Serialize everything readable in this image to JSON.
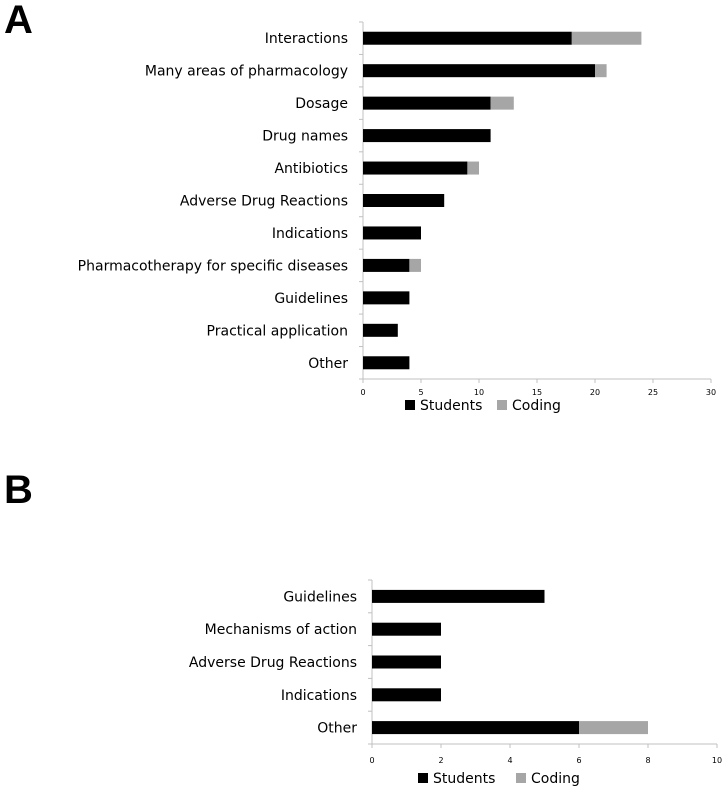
{
  "panel_a_letter": "A",
  "panel_b_letter": "B",
  "colors": {
    "students": "#000000",
    "coding": "#a6a6a6",
    "axis": "#c0c0c0"
  },
  "chart_data": [
    {
      "type": "bar",
      "orientation": "horizontal",
      "stacked": true,
      "categories": [
        "Interactions",
        "Many areas of pharmacology",
        "Dosage",
        "Drug names",
        "Antibiotics",
        "Adverse Drug Reactions",
        "Indications",
        "Pharmacotherapy for specific diseases",
        "Guidelines",
        "Practical application",
        "Other"
      ],
      "series": [
        {
          "name": "Students",
          "values": [
            18,
            20,
            11,
            11,
            9,
            7,
            5,
            4,
            4,
            3,
            4
          ]
        },
        {
          "name": "Coding",
          "values": [
            6,
            1,
            2,
            0,
            1,
            0,
            0,
            1,
            0,
            0,
            0
          ]
        }
      ],
      "xlim": [
        0,
        30
      ],
      "xticks": [
        0,
        5,
        10,
        15,
        20,
        25,
        30
      ],
      "grid": false,
      "legend": "bottom"
    },
    {
      "type": "bar",
      "orientation": "horizontal",
      "stacked": true,
      "categories": [
        "Guidelines",
        "Mechanisms of action",
        "Adverse Drug Reactions",
        "Indications",
        "Other"
      ],
      "series": [
        {
          "name": "Students",
          "values": [
            5,
            2,
            2,
            2,
            6
          ]
        },
        {
          "name": "Coding",
          "values": [
            0,
            0,
            0,
            0,
            2
          ]
        }
      ],
      "xlim": [
        0,
        10
      ],
      "xticks": [
        0,
        2,
        4,
        6,
        8,
        10
      ],
      "grid": false,
      "legend": "bottom"
    }
  ]
}
